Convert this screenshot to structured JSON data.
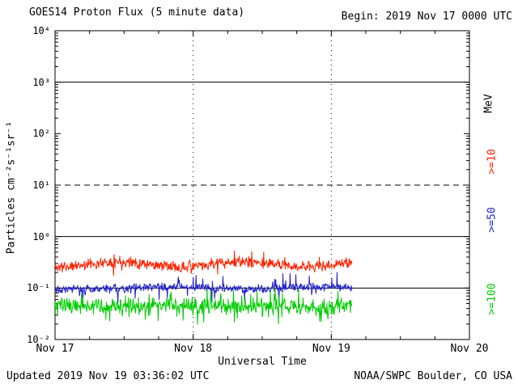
{
  "header": {
    "title": "GOES14 Proton Flux (5 minute data)",
    "begin": "Begin: 2019 Nov 17 0000 UTC"
  },
  "footer": {
    "updated": "Updated 2019 Nov 19 03:36:02 UTC",
    "source": "NOAA/SWPC Boulder, CO USA"
  },
  "chart_data": {
    "type": "line",
    "title": "GOES14 Proton Flux (5 minute data)",
    "xlabel": "Universal Time",
    "ylabel": "Particles  cm⁻²s⁻¹sr⁻¹",
    "right_axis_unit": "MeV",
    "x_tick_labels": [
      "Nov 17",
      "Nov 18",
      "Nov 19",
      "Nov 20"
    ],
    "x_range_days": [
      0,
      3
    ],
    "y_log10_range": [
      -2,
      4
    ],
    "y_tick_labels": [
      "10⁴",
      "10³",
      "10²",
      "10¹",
      "10⁰",
      "10⁻¹",
      "10⁻²"
    ],
    "grid": {
      "h_solid_log10": [
        3,
        0,
        -1
      ],
      "h_dashed_log10": [
        1
      ],
      "v_dotted_days": [
        1,
        2
      ]
    },
    "series": [
      {
        "name": ">=10",
        "unit": "MeV",
        "color": "#fe2200",
        "start_day": 0,
        "end_day": 2.15,
        "interval_minutes": 5,
        "mean_flux": 0.3,
        "typical_min": 0.17,
        "typical_max": 0.55,
        "mean_log10": -0.54,
        "noise_log10": 0.12,
        "wave_log10": 0.05,
        "wave_freq": 1.1,
        "spike_prob": 0.06,
        "spike_log10": 0.22,
        "seed": 11
      },
      {
        "name": ">=50",
        "unit": "MeV",
        "color": "#2222cc",
        "start_day": 0,
        "end_day": 2.15,
        "interval_minutes": 5,
        "mean_flux": 0.1,
        "typical_min": 0.07,
        "typical_max": 0.2,
        "mean_log10": -1.0,
        "noise_log10": 0.1,
        "wave_log10": 0.02,
        "wave_freq": 0.9,
        "spike_prob": 0.08,
        "spike_log10": 0.25,
        "seed": 22
      },
      {
        "name": ">=100",
        "unit": "MeV",
        "color": "#00cc00",
        "start_day": 0,
        "end_day": 2.15,
        "interval_minutes": 5,
        "mean_flux": 0.045,
        "typical_min": 0.022,
        "typical_max": 0.11,
        "mean_log10": -1.35,
        "noise_log10": 0.18,
        "wave_log10": 0.02,
        "wave_freq": 1.3,
        "spike_prob": 0.15,
        "spike_log10": 0.3,
        "seed": 33
      }
    ]
  }
}
